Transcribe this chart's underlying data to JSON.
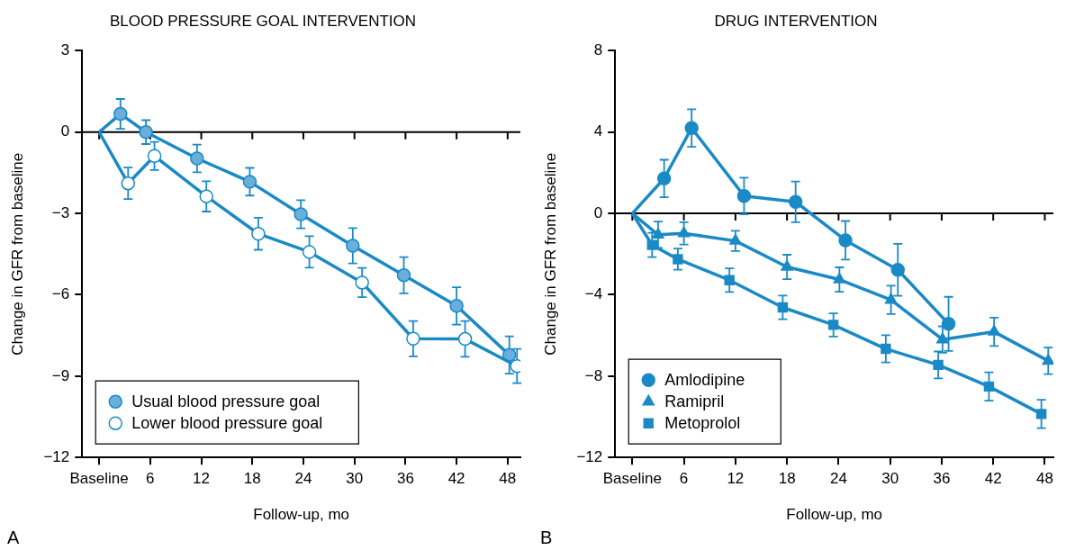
{
  "chart_data": [
    {
      "type": "line",
      "title": "BLOOD PRESSURE GOAL INTERVENTION",
      "xlabel": "Follow-up, mo",
      "ylabel": "Change in GFR from baseline",
      "annotations": [
        "A"
      ],
      "xlim": [
        -2,
        49.5
      ],
      "xticks": [
        {
          "value": 0,
          "label": "Baseline"
        },
        6,
        12,
        18,
        24,
        30,
        36,
        42,
        48
      ],
      "ylim": [
        -12,
        3
      ],
      "yticks": [
        -12,
        -9,
        -6,
        -3,
        0,
        3
      ],
      "grid": false,
      "legend": "bottom left",
      "line_style": "solid",
      "ref_lines": [
        {
          "axis": "y",
          "value": 0,
          "color": "#000000"
        }
      ],
      "series": [
        {
          "name": "Usual blood pressure goal",
          "color": "#1a8ac6",
          "colors": [
            null,
            "#6aaedc",
            "#6aaedc",
            "#6aaedc",
            "#6aaedc",
            "#6aaedc",
            "#6aaedc",
            "#6aaedc",
            "#6aaedc",
            "#6aaedc"
          ],
          "marker": "circle",
          "x": [
            0,
            2.5,
            5.5,
            11.5,
            17.7,
            23.7,
            29.8,
            35.8,
            42,
            48.2
          ],
          "values": [
            0,
            0.67,
            0,
            -0.97,
            -1.83,
            -3.03,
            -4.19,
            -5.28,
            -6.41,
            -8.22
          ],
          "errors": [
            null,
            0.55,
            0.44,
            0.51,
            0.51,
            0.52,
            0.65,
            0.67,
            0.69,
            0.69
          ]
        },
        {
          "name": "Lower blood pressure goal",
          "color": "#1a8ac6",
          "colors": [
            null,
            "#ffffff",
            "#ffffff",
            "#ffffff",
            "#ffffff",
            "#ffffff",
            "#ffffff",
            "#ffffff",
            "#ffffff",
            "#ffffff"
          ],
          "marker": "circle",
          "x": [
            0,
            3.4,
            6.5,
            12.6,
            18.7,
            24.7,
            30.9,
            36.9,
            43,
            49.1
          ],
          "values": [
            0,
            -1.89,
            -0.88,
            -2.37,
            -3.75,
            -4.42,
            -5.55,
            -7.62,
            -7.63,
            -8.63
          ],
          "errors": [
            null,
            0.58,
            0.52,
            0.56,
            0.59,
            0.58,
            0.54,
            0.65,
            0.66,
            0.63
          ]
        }
      ]
    },
    {
      "type": "line",
      "title": "DRUG INTERVENTION",
      "xlabel": "Follow-up, mo",
      "ylabel": "Change in GFR from baseline",
      "annotations": [
        "B"
      ],
      "xlim": [
        -2,
        49
      ],
      "xticks": [
        {
          "value": 0,
          "label": "Baseline"
        },
        6,
        12,
        18,
        24,
        30,
        36,
        42,
        48
      ],
      "ylim": [
        -12,
        8
      ],
      "yticks": [
        -12,
        -8,
        -4,
        0,
        4,
        8
      ],
      "grid": false,
      "legend": "bottom left",
      "line_style": "solid",
      "ref_lines": [
        {
          "axis": "y",
          "value": 0,
          "color": "#000000"
        }
      ],
      "series": [
        {
          "name": "Amlodipine",
          "color": "#1a8ac6",
          "colors": [
            null,
            "#1a8ac6",
            "#1a8ac6",
            "#1a8ac6",
            "#1a8ac6",
            "#1a8ac6",
            "#1a8ac6",
            "#1a8ac6"
          ],
          "marker": "circle",
          "x": [
            0,
            3.7,
            6.9,
            13.0,
            19.0,
            24.8,
            30.9,
            36.8
          ],
          "values": [
            0,
            1.72,
            4.2,
            0.86,
            0.57,
            -1.32,
            -2.77,
            -5.43
          ],
          "errors": [
            null,
            0.92,
            0.92,
            0.9,
            1.0,
            0.95,
            1.28,
            1.33
          ]
        },
        {
          "name": "Ramipril",
          "color": "#1a8ac6",
          "colors": [
            null,
            "#1a8ac6",
            "#1a8ac6",
            "#1a8ac6",
            "#1a8ac6",
            "#1a8ac6",
            "#1a8ac6",
            "#1a8ac6",
            "#1a8ac6",
            "#1a8ac6"
          ],
          "marker": "triangle",
          "x": [
            0,
            3.0,
            6.0,
            12.0,
            18.0,
            24.1,
            30.1,
            36.1,
            42.1,
            48.4
          ],
          "values": [
            0,
            -1.05,
            -0.98,
            -1.35,
            -2.63,
            -3.25,
            -4.25,
            -6.2,
            -5.82,
            -7.25
          ],
          "errors": [
            null,
            0.65,
            0.55,
            0.5,
            0.6,
            0.6,
            0.7,
            0.65,
            0.7,
            0.65
          ]
        },
        {
          "name": "Metoprolol",
          "color": "#1a8ac6",
          "colors": [
            null,
            "#1a8ac6",
            "#1a8ac6",
            "#1a8ac6",
            "#1a8ac6",
            "#1a8ac6",
            "#1a8ac6",
            "#1a8ac6",
            "#1a8ac6",
            "#1a8ac6"
          ],
          "marker": "square",
          "x": [
            0,
            2.3,
            5.3,
            11.3,
            17.5,
            23.4,
            29.5,
            35.6,
            41.5,
            47.6
          ],
          "values": [
            0,
            -1.55,
            -2.25,
            -3.28,
            -4.62,
            -5.48,
            -6.66,
            -7.45,
            -8.51,
            -9.86
          ],
          "errors": [
            null,
            0.6,
            0.52,
            0.58,
            0.58,
            0.57,
            0.67,
            0.66,
            0.7,
            0.7
          ]
        }
      ]
    }
  ]
}
